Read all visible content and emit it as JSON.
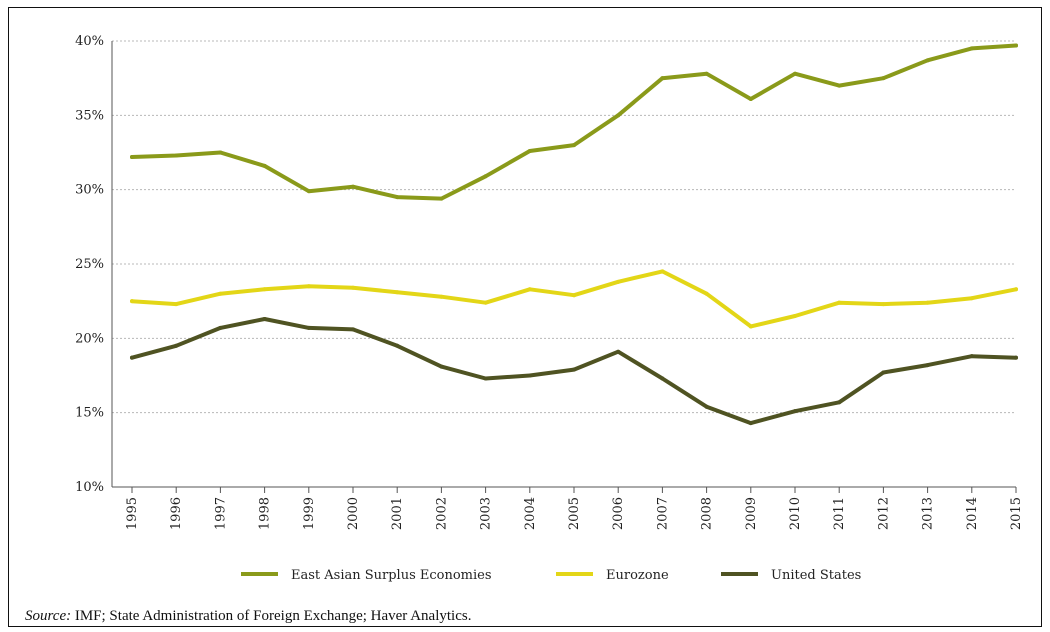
{
  "chart_data": {
    "type": "line",
    "title": "",
    "xlabel": "",
    "ylabel": "",
    "x": [
      "1995",
      "1996",
      "1997",
      "1998",
      "1999",
      "2000",
      "2001",
      "2002",
      "2003",
      "2004",
      "2005",
      "2006",
      "2007",
      "2008",
      "2009",
      "2010",
      "2011",
      "2012",
      "2013",
      "2014",
      "2015"
    ],
    "ylim": [
      10,
      40
    ],
    "yticks": [
      "10%",
      "15%",
      "20%",
      "25%",
      "30%",
      "35%",
      "40%"
    ],
    "grid": "horizontal dotted",
    "legend_position": "bottom",
    "series": [
      {
        "name": "East Asian Surplus Economies",
        "color": "#8a9a1a",
        "values": [
          32.2,
          32.3,
          32.5,
          31.6,
          29.9,
          30.2,
          29.5,
          29.4,
          30.9,
          32.6,
          33.0,
          35.0,
          37.5,
          37.8,
          36.1,
          37.8,
          37.0,
          37.5,
          38.7,
          39.5,
          39.7
        ]
      },
      {
        "name": "Eurozone",
        "color": "#e3d617",
        "values": [
          22.5,
          22.3,
          23.0,
          23.3,
          23.5,
          23.4,
          23.1,
          22.8,
          22.4,
          23.3,
          22.9,
          23.8,
          24.5,
          23.0,
          20.8,
          21.5,
          22.4,
          22.3,
          22.4,
          22.7,
          23.3
        ]
      },
      {
        "name": "United States",
        "color": "#4f5322",
        "values": [
          18.7,
          19.5,
          20.7,
          21.3,
          20.7,
          20.6,
          19.5,
          18.1,
          17.3,
          17.5,
          17.9,
          19.1,
          17.3,
          15.4,
          14.3,
          15.1,
          15.7,
          17.7,
          18.2,
          18.8,
          18.7
        ]
      }
    ]
  },
  "source": {
    "prefix": "Source:",
    "text": " IMF; State Administration of Foreign Exchange; Haver Analytics."
  }
}
